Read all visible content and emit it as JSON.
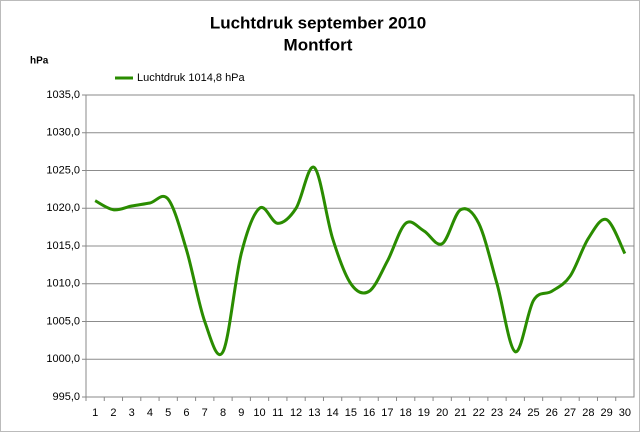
{
  "chart_data": {
    "type": "line",
    "title": "Luchtdruk september 2010",
    "subtitle": "Montfort",
    "y_label": "hPa",
    "categories": [
      "1",
      "2",
      "3",
      "4",
      "5",
      "6",
      "7",
      "8",
      "9",
      "10",
      "11",
      "12",
      "13",
      "14",
      "15",
      "16",
      "17",
      "18",
      "19",
      "20",
      "21",
      "22",
      "23",
      "24",
      "25",
      "26",
      "27",
      "28",
      "29",
      "30"
    ],
    "series": [
      {
        "name": "Luchtdruk 1014,8 hPa",
        "color": "#2a8c00",
        "values": [
          1021.0,
          1019.8,
          1020.3,
          1020.7,
          1021.2,
          1014.5,
          1005.0,
          1001.0,
          1014.0,
          1020.0,
          1018.0,
          1020.0,
          1025.4,
          1016.0,
          1010.0,
          1009.0,
          1013.0,
          1018.0,
          1017.0,
          1015.3,
          1019.8,
          1018.0,
          1010.0,
          1001.0,
          1007.8,
          1009.0,
          1011.0,
          1016.0,
          1018.5,
          1014.0
        ]
      }
    ],
    "ylim": [
      995,
      1035
    ],
    "yticks": [
      {
        "value": 995,
        "label": "995,0"
      },
      {
        "value": 1000,
        "label": "1000,0"
      },
      {
        "value": 1005,
        "label": "1005,0"
      },
      {
        "value": 1010,
        "label": "1010,0"
      },
      {
        "value": 1015,
        "label": "1015,0"
      },
      {
        "value": 1020,
        "label": "1020,0"
      },
      {
        "value": 1025,
        "label": "1025,0"
      },
      {
        "value": 1030,
        "label": "1030,0"
      },
      {
        "value": 1035,
        "label": "1035,0"
      }
    ],
    "grid": true,
    "smooth": true,
    "legend": "top-left"
  }
}
